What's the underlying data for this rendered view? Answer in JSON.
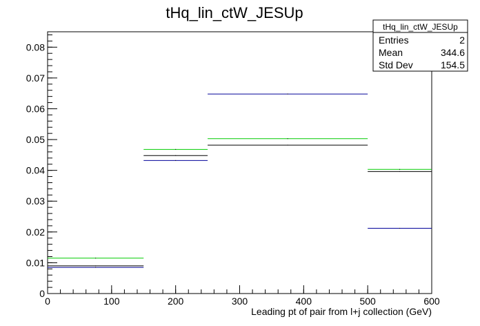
{
  "chart_data": {
    "type": "histogram-step",
    "title": "tHq_lin_ctW_JESUp",
    "xlabel": "Leading pt of pair from l+j collection (GeV)",
    "ylabel": "",
    "xlim": [
      0,
      600
    ],
    "ylim": [
      0,
      0.085
    ],
    "x_ticks": [
      0,
      100,
      200,
      300,
      400,
      500,
      600
    ],
    "y_ticks": [
      0,
      0.01,
      0.02,
      0.03,
      0.04,
      0.05,
      0.06,
      0.07,
      0.08
    ],
    "x_tick_labels": [
      "0",
      "100",
      "200",
      "300",
      "400",
      "500",
      "600"
    ],
    "y_tick_labels": [
      "0",
      "0.01",
      "0.02",
      "0.03",
      "0.04",
      "0.05",
      "0.06",
      "0.07",
      "0.08"
    ],
    "bin_edges": [
      0,
      150,
      250,
      500,
      600
    ],
    "series": [
      {
        "color": "#00cc00",
        "values": [
          0.0115,
          0.0468,
          0.0503,
          0.0403
        ]
      },
      {
        "color": "#000000",
        "values": [
          0.009,
          0.0448,
          0.0482,
          0.0396
        ]
      },
      {
        "color": "#000099",
        "values": [
          0.0085,
          0.0432,
          0.0648,
          0.0212
        ]
      }
    ],
    "grid": false,
    "stats_box": {
      "title": "tHq_lin_ctW_JESUp",
      "rows": [
        {
          "label": "Entries",
          "value": "2"
        },
        {
          "label": "Mean",
          "value": "344.6"
        },
        {
          "label": "Std Dev",
          "value": "154.5"
        }
      ]
    }
  }
}
